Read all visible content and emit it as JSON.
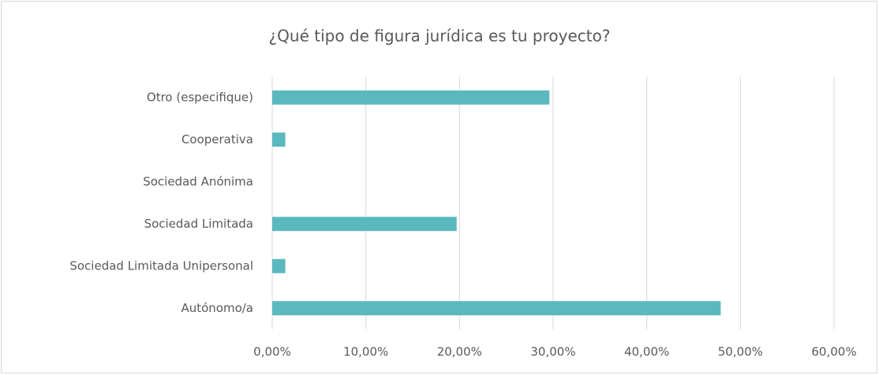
{
  "chart_data": {
    "type": "bar",
    "orientation": "horizontal",
    "title": "¿Qué tipo de figura jurídica es tu proyecto?",
    "categories": [
      "Otro (especifique)",
      "Cooperativa",
      "Sociedad Anónima",
      "Sociedad Limitada",
      "Sociedad Limitada Unipersonal",
      "Autónomo/a"
    ],
    "values": [
      29.6,
      1.4,
      0,
      19.7,
      1.4,
      47.9
    ],
    "color": "#5bb8bf",
    "xlim": [
      0,
      60
    ],
    "xticks": [
      {
        "value": 0,
        "label": "0,00%"
      },
      {
        "value": 10,
        "label": "10,00%"
      },
      {
        "value": 20,
        "label": "20,00%"
      },
      {
        "value": 30,
        "label": "30,00%"
      },
      {
        "value": 40,
        "label": "40,00%"
      },
      {
        "value": 50,
        "label": "50,00%"
      },
      {
        "value": 60,
        "label": "60,00%"
      }
    ],
    "grid": true
  }
}
